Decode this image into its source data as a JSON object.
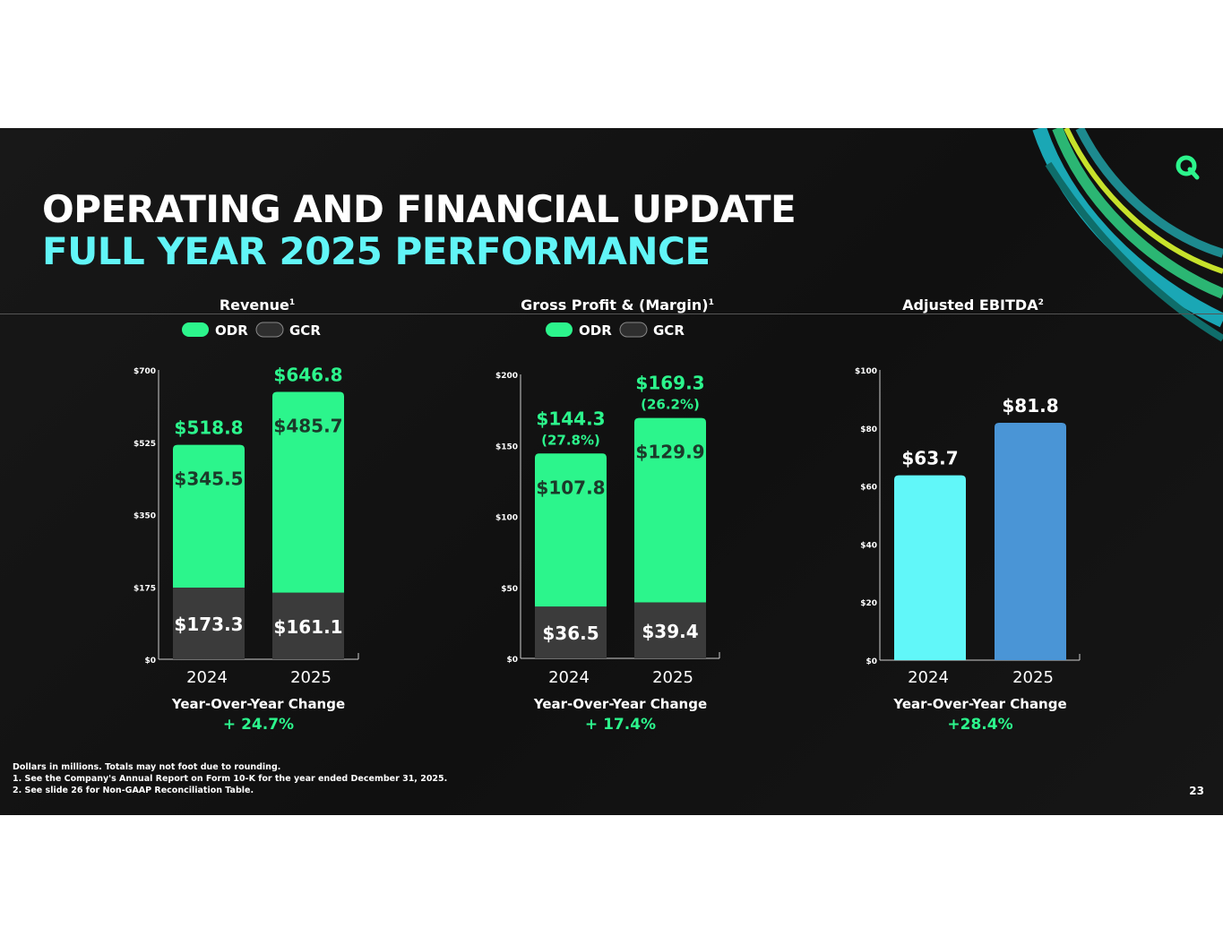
{
  "title_line1": "OPERATING AND FINANCIAL UPDATE",
  "title_line2": "FULL YEAR 2025 PERFORMANCE",
  "legend_labels": [
    "ODR",
    "GCR"
  ],
  "yoy_label": "Year-Over-Year Change",
  "footnotes": [
    "Dollars in millions. Totals may not foot due to rounding.",
    "1. See the Company's Annual Report on Form 10-K for the year ended December 31, 2025.",
    "2. See slide 26 for Non-GAAP Reconciliation Table."
  ],
  "page_number": "23",
  "colors": {
    "odr": "#2cf58c",
    "gcr": "#3b3b3b",
    "ebitda_2024": "#61f7f9",
    "ebitda_2025": "#4a95d6",
    "accent_green": "#2cf58c",
    "title_cyan": "#61f5f7"
  },
  "chart_data": [
    {
      "type": "bar",
      "title": "Revenue",
      "title_sup": "1",
      "stacked": true,
      "legend": true,
      "categories": [
        "2024",
        "2025"
      ],
      "ylim": [
        0,
        700
      ],
      "yticks": [
        0,
        175,
        350,
        525,
        700
      ],
      "ytick_labels": [
        "$0",
        "$175",
        "$350",
        "$525",
        "$700"
      ],
      "series": [
        {
          "name": "GCR",
          "values": [
            173.3,
            161.1
          ],
          "labels": [
            "$173.3",
            "$161.1"
          ]
        },
        {
          "name": "ODR",
          "values": [
            345.5,
            485.7
          ],
          "labels": [
            "$345.5",
            "$485.7"
          ]
        }
      ],
      "totals": [
        "$518.8",
        "$646.8"
      ],
      "margins": [],
      "yoy_change": "+ 24.7%"
    },
    {
      "type": "bar",
      "title": "Gross Profit & (Margin)",
      "title_sup": "1",
      "stacked": true,
      "legend": true,
      "categories": [
        "2024",
        "2025"
      ],
      "ylim": [
        0,
        200
      ],
      "yticks": [
        0,
        50,
        100,
        150,
        200
      ],
      "ytick_labels": [
        "$0",
        "$50",
        "$100",
        "$150",
        "$200"
      ],
      "series": [
        {
          "name": "GCR",
          "values": [
            36.5,
            39.4
          ],
          "labels": [
            "$36.5",
            "$39.4"
          ]
        },
        {
          "name": "ODR",
          "values": [
            107.8,
            129.9
          ],
          "labels": [
            "$107.8",
            "$129.9"
          ]
        }
      ],
      "totals": [
        "$144.3",
        "$169.3"
      ],
      "margins": [
        "(27.8%)",
        "(26.2%)"
      ],
      "yoy_change": "+ 17.4%"
    },
    {
      "type": "bar",
      "title": "Adjusted EBITDA",
      "title_sup": "2",
      "stacked": false,
      "legend": false,
      "categories": [
        "2024",
        "2025"
      ],
      "ylim": [
        0,
        100
      ],
      "yticks": [
        0,
        20,
        40,
        60,
        80,
        100
      ],
      "ytick_labels": [
        "$0",
        "$20",
        "$40",
        "$60",
        "$80",
        "$100"
      ],
      "values": [
        63.7,
        81.8
      ],
      "totals": [
        "$63.7",
        "$81.8"
      ],
      "margins": [],
      "yoy_change": "+28.4%"
    }
  ]
}
